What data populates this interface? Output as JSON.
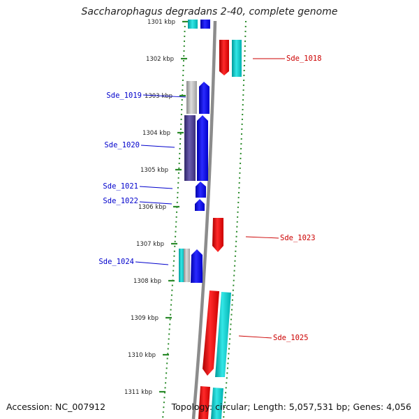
{
  "title": "Saccharophagus degradans 2-40, complete genome",
  "accession": "Accession: NC_007912",
  "summary": "Topology: circular; Length: 5,057,531 bp; Genes: 4,056",
  "colors": {
    "forward_gene": "#0000ee",
    "reverse_gene": "#ee0000",
    "cds_feature": "#00c8c8",
    "other_feature": "#b4b4b4",
    "purple_feature": "#4b3d8c",
    "scale_ticks": "#2a8a2a",
    "backbone": "#8c8c8c",
    "forward_label": "#0000cc",
    "reverse_label": "#cc0000"
  },
  "scale": {
    "ticks": [
      "1301 kbp",
      "1302 kbp",
      "1303 kbp",
      "1304 kbp",
      "1305 kbp",
      "1306 kbp",
      "1307 kbp",
      "1308 kbp",
      "1309 kbp",
      "1310 kbp",
      "1311 kbp"
    ]
  },
  "genes": [
    {
      "name": "Sde_1018",
      "strand": "reverse"
    },
    {
      "name": "Sde_1019",
      "strand": "forward"
    },
    {
      "name": "Sde_1020",
      "strand": "forward"
    },
    {
      "name": "Sde_1021",
      "strand": "forward"
    },
    {
      "name": "Sde_1022",
      "strand": "forward"
    },
    {
      "name": "Sde_1023",
      "strand": "reverse"
    },
    {
      "name": "Sde_1024",
      "strand": "forward"
    },
    {
      "name": "Sde_1025",
      "strand": "reverse"
    }
  ]
}
